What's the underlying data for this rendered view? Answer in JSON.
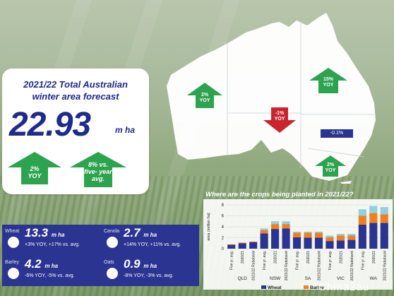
{
  "forecast": {
    "title_line1": "2021/22 Total Australian",
    "title_line2": "winter area forecast",
    "value": "22.93",
    "unit": "m ha",
    "arrow1_line1": "2%",
    "arrow1_line2": "YOY",
    "arrow2_line1": "8% vs.",
    "arrow2_line2": "five- year",
    "arrow2_line3": "avg."
  },
  "crops": [
    {
      "name": "Wheat",
      "value": "13.3",
      "unit": "m ha",
      "change": "+3% YOY, +17% vs. avg."
    },
    {
      "name": "Canola",
      "value": "2.7",
      "unit": "m ha",
      "change": "+14% YOY, +11% vs. avg."
    },
    {
      "name": "Barley",
      "value": "4.2",
      "unit": "m ha",
      "change": "-6% YOY, -5% vs. avg."
    },
    {
      "name": "Oats",
      "value": "0.9",
      "unit": "m ha",
      "change": "-8% YOY, -3% vs. avg."
    }
  ],
  "map": {
    "wa_line1": "2%",
    "wa_line2": "YOY",
    "sa_line1": "-1%",
    "sa_line2": "YOY",
    "qld_line1": "15%",
    "qld_line2": "YOY",
    "nsw_badge": "-0.1%",
    "vic_line1": "2%",
    "vic_line2": "YOY"
  },
  "colors": {
    "navy": "#1e2a8c",
    "green_arrow": "#2ea34f",
    "red_arrow": "#c9252d",
    "wheat": "#2b3490",
    "barley": "#f07f1e",
    "canola": "#8fd0e2"
  },
  "watermark": "China2au",
  "chart_data": {
    "type": "bar",
    "title": "Where are the crops being planted in 2021/22?",
    "ylabel": "area (million ha)",
    "ylim": [
      0,
      8
    ],
    "yticks": [
      0,
      2,
      4,
      6,
      8
    ],
    "states": [
      "QLD",
      "NSW",
      "SA",
      "VIC",
      "WA"
    ],
    "categories": [
      "Five yr. avg.",
      "2020/21",
      "2021/22 Rabobank",
      "Five yr. avg.",
      "2020/21",
      "2021/22 Rabobank",
      "Five yr. avg.",
      "2020/21",
      "2021/22 Rabobank",
      "Five yr. avg.",
      "2020/21",
      "2021/22 Rabobank",
      "Five yr. avg.",
      "2020/21",
      "2021/22 Rabobank"
    ],
    "series": [
      {
        "name": "Wheat",
        "values": [
          0.7,
          1.0,
          1.2,
          2.8,
          3.6,
          3.7,
          2.1,
          2.0,
          2.0,
          1.4,
          1.5,
          1.6,
          4.4,
          4.7,
          4.7
        ]
      },
      {
        "name": "Barley",
        "values": [
          0.1,
          0.1,
          0.1,
          0.6,
          0.9,
          0.8,
          0.8,
          0.9,
          0.9,
          0.7,
          0.9,
          0.8,
          1.6,
          1.8,
          1.6
        ]
      },
      {
        "name": "Canola",
        "values": [
          0.0,
          0.0,
          0.0,
          0.3,
          0.5,
          0.5,
          0.2,
          0.2,
          0.2,
          0.3,
          0.3,
          0.3,
          1.2,
          1.3,
          1.3
        ]
      }
    ],
    "legend_position": "bottom"
  }
}
